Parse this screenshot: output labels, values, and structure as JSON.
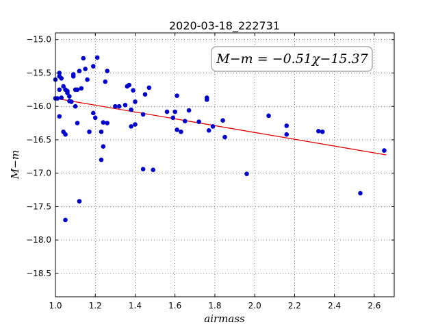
{
  "chart_data": {
    "type": "scatter",
    "title": "2020-03-18_222731",
    "xlabel": "airmass",
    "ylabel": "M−m",
    "xlim": [
      1.0,
      2.7
    ],
    "ylim": [
      -14.9,
      -18.85
    ],
    "y_inverted": true,
    "grid": true,
    "xticks": [
      1.0,
      1.2,
      1.4,
      1.6,
      1.8,
      2.0,
      2.2,
      2.4,
      2.6
    ],
    "xtick_labels": [
      "1.0",
      "1.2",
      "1.4",
      "1.6",
      "1.8",
      "2.0",
      "2.2",
      "2.4",
      "2.6"
    ],
    "yticks": [
      -15.0,
      -15.5,
      -16.0,
      -16.5,
      -17.0,
      -17.5,
      -18.0,
      -18.5
    ],
    "ytick_labels": [
      "−15.0",
      "−15.5",
      "−16.0",
      "−16.5",
      "−17.0",
      "−17.5",
      "−18.0",
      "−18.5"
    ],
    "annotation": "M−m = −0.51χ−15.37",
    "fit": {
      "slope": -0.51,
      "intercept": -15.37,
      "x_range": [
        1.02,
        2.66
      ],
      "color": "#e00000"
    },
    "marker_color": "#0000cc",
    "points": [
      [
        1.0,
        -15.6
      ],
      [
        1.0,
        -15.88
      ],
      [
        1.01,
        -15.88
      ],
      [
        1.02,
        -15.55
      ],
      [
        1.02,
        -15.5
      ],
      [
        1.02,
        -15.75
      ],
      [
        1.02,
        -16.15
      ],
      [
        1.03,
        -15.58
      ],
      [
        1.03,
        -15.87
      ],
      [
        1.04,
        -15.7
      ],
      [
        1.04,
        -16.38
      ],
      [
        1.05,
        -16.42
      ],
      [
        1.05,
        -17.7
      ],
      [
        1.05,
        -15.75
      ],
      [
        1.06,
        -15.8
      ],
      [
        1.06,
        -15.77
      ],
      [
        1.07,
        -15.85
      ],
      [
        1.07,
        -15.92
      ],
      [
        1.08,
        -15.93
      ],
      [
        1.09,
        -15.52
      ],
      [
        1.09,
        -15.55
      ],
      [
        1.1,
        -16.0
      ],
      [
        1.1,
        -15.75
      ],
      [
        1.11,
        -16.25
      ],
      [
        1.11,
        -15.75
      ],
      [
        1.12,
        -17.42
      ],
      [
        1.12,
        -15.47
      ],
      [
        1.13,
        -15.73
      ],
      [
        1.14,
        -15.28
      ],
      [
        1.15,
        -15.44
      ],
      [
        1.16,
        -15.6
      ],
      [
        1.17,
        -16.38
      ],
      [
        1.19,
        -15.4
      ],
      [
        1.19,
        -16.1
      ],
      [
        1.2,
        -16.17
      ],
      [
        1.21,
        -15.27
      ],
      [
        1.23,
        -16.8
      ],
      [
        1.23,
        -16.38
      ],
      [
        1.24,
        -16.24
      ],
      [
        1.24,
        -16.6
      ],
      [
        1.25,
        -15.63
      ],
      [
        1.26,
        -15.47
      ],
      [
        1.26,
        -16.25
      ],
      [
        1.3,
        -16.0
      ],
      [
        1.32,
        -16.0
      ],
      [
        1.35,
        -15.98
      ],
      [
        1.36,
        -15.7
      ],
      [
        1.37,
        -15.68
      ],
      [
        1.38,
        -16.05
      ],
      [
        1.38,
        -16.3
      ],
      [
        1.39,
        -15.76
      ],
      [
        1.4,
        -16.27
      ],
      [
        1.4,
        -15.93
      ],
      [
        1.44,
        -16.12
      ],
      [
        1.44,
        -16.94
      ],
      [
        1.45,
        -15.82
      ],
      [
        1.47,
        -15.72
      ],
      [
        1.49,
        -16.95
      ],
      [
        1.56,
        -16.08
      ],
      [
        1.59,
        -16.17
      ],
      [
        1.6,
        -16.08
      ],
      [
        1.61,
        -16.35
      ],
      [
        1.61,
        -15.84
      ],
      [
        1.63,
        -16.38
      ],
      [
        1.65,
        -16.22
      ],
      [
        1.67,
        -16.06
      ],
      [
        1.72,
        -16.23
      ],
      [
        1.76,
        -15.87
      ],
      [
        1.76,
        -15.9
      ],
      [
        1.77,
        -16.36
      ],
      [
        1.79,
        -16.3
      ],
      [
        1.84,
        -16.21
      ],
      [
        1.85,
        -16.46
      ],
      [
        1.96,
        -17.01
      ],
      [
        2.07,
        -16.14
      ],
      [
        2.16,
        -16.29
      ],
      [
        2.16,
        -16.42
      ],
      [
        2.32,
        -16.37
      ],
      [
        2.34,
        -16.38
      ],
      [
        2.53,
        -17.3
      ],
      [
        2.65,
        -16.66
      ]
    ]
  }
}
